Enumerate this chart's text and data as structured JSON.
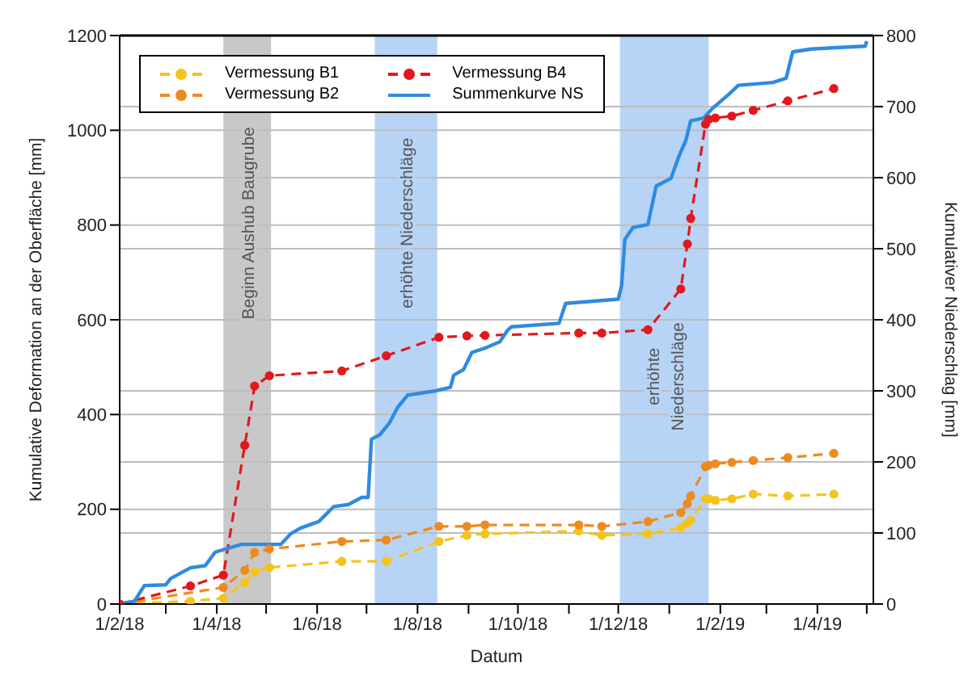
{
  "chart_data": {
    "type": "line",
    "xlabel": "Datum",
    "ylabel": "Kumulative Deformation an der Oberfläche [mm]",
    "y2label": "Kumulativer Niederschlag [mm]",
    "xlim": [
      "2018-02-01",
      "2019-05-05"
    ],
    "xticks": [
      {
        "value": "2018-02-01",
        "label": "1/2/18"
      },
      {
        "value": "2018-03-01",
        "label": null
      },
      {
        "value": "2018-04-01",
        "label": "1/4/18"
      },
      {
        "value": "2018-05-01",
        "label": null
      },
      {
        "value": "2018-06-01",
        "label": "1/6/18"
      },
      {
        "value": "2018-07-01",
        "label": null
      },
      {
        "value": "2018-08-01",
        "label": "1/8/18"
      },
      {
        "value": "2018-09-01",
        "label": null
      },
      {
        "value": "2018-10-01",
        "label": "1/10/18"
      },
      {
        "value": "2018-11-01",
        "label": null
      },
      {
        "value": "2018-12-01",
        "label": "1/12/18"
      },
      {
        "value": "2019-01-01",
        "label": null
      },
      {
        "value": "2019-02-01",
        "label": "1/2/19"
      },
      {
        "value": "2019-03-01",
        "label": null
      },
      {
        "value": "2019-04-01",
        "label": "1/4/19"
      },
      {
        "value": "2019-05-01",
        "label": null
      }
    ],
    "ylim": [
      0,
      1200
    ],
    "yticks": [
      0,
      200,
      400,
      600,
      800,
      1000,
      1200
    ],
    "y2lim": [
      0,
      800
    ],
    "y2ticks": [
      0,
      100,
      200,
      300,
      400,
      500,
      600,
      700,
      800
    ],
    "grid": "y",
    "legend": "top left",
    "bands": [
      {
        "axis": "x",
        "from": "2018-04-05",
        "to": "2018-05-04",
        "label": "Beginn Aushub Baugrube",
        "color": "#c8c8c8"
      },
      {
        "axis": "x",
        "from": "2018-07-06",
        "to": "2018-08-13",
        "label": "erhöhte Niederschläge",
        "color": "#b7d4f6"
      },
      {
        "axis": "x",
        "from": "2018-12-02",
        "to": "2019-01-25",
        "label": "erhöhte\nNiederschläge",
        "color": "#b7d4f6"
      }
    ],
    "series": [
      {
        "name": "Vermessung B1",
        "color": "#f5c31c",
        "marker": "circle",
        "line_style": "dashed",
        "x": [
          "2018-02-01",
          "2018-03-16",
          "2018-04-05",
          "2018-04-18",
          "2018-04-24",
          "2018-05-03",
          "2018-06-16",
          "2018-07-13",
          "2018-08-14",
          "2018-08-31",
          "2018-09-11",
          "2018-11-07",
          "2018-11-21",
          "2018-12-19",
          "2019-01-08",
          "2019-01-12",
          "2019-01-14",
          "2019-01-23",
          "2019-01-25",
          "2019-01-29",
          "2019-02-08",
          "2019-02-21",
          "2019-03-14",
          "2019-04-11"
        ],
        "values": [
          0,
          6,
          12,
          45,
          68,
          77,
          90,
          90,
          132,
          145,
          148,
          154,
          145,
          148,
          161,
          171,
          177,
          222,
          222,
          219,
          222,
          232,
          228,
          232
        ]
      },
      {
        "name": "Vermessung B2",
        "color": "#ef8a1e",
        "marker": "circle",
        "line_style": "dashed",
        "x": [
          "2018-02-01",
          "2018-04-05",
          "2018-04-18",
          "2018-04-24",
          "2018-05-03",
          "2018-06-16",
          "2018-07-13",
          "2018-08-14",
          "2018-08-31",
          "2018-09-11",
          "2018-11-07",
          "2018-11-21",
          "2018-12-19",
          "2019-01-08",
          "2019-01-12",
          "2019-01-14",
          "2019-01-23",
          "2019-01-25",
          "2019-01-29",
          "2019-02-08",
          "2019-02-21",
          "2019-03-14",
          "2019-04-11"
        ],
        "values": [
          0,
          35,
          71,
          109,
          116,
          132,
          135,
          164,
          164,
          167,
          167,
          164,
          174,
          193,
          212,
          228,
          290,
          293,
          296,
          299,
          303,
          309,
          318
        ]
      },
      {
        "name": "Vermessung B4",
        "color": "#e3181c",
        "marker": "circle",
        "line_style": "dashed",
        "x": [
          "2018-02-01",
          "2018-03-16",
          "2018-04-05",
          "2018-04-18",
          "2018-04-24",
          "2018-05-03",
          "2018-06-16",
          "2018-07-13",
          "2018-08-14",
          "2018-08-31",
          "2018-09-11",
          "2018-11-07",
          "2018-11-21",
          "2018-12-19",
          "2019-01-08",
          "2019-01-12",
          "2019-01-14",
          "2019-01-23",
          "2019-01-25",
          "2019-01-29",
          "2019-02-08",
          "2019-02-21",
          "2019-03-14",
          "2019-04-11"
        ],
        "values": [
          0,
          38,
          61,
          335,
          460,
          482,
          492,
          524,
          563,
          566,
          567,
          572,
          572,
          579,
          665,
          760,
          814,
          1013,
          1023,
          1026,
          1030,
          1042,
          1062,
          1088
        ]
      },
      {
        "name": "Summenkurve NS",
        "color": "#2f8be0",
        "marker": "none",
        "line_style": "solid",
        "axis": "y2",
        "x": [
          "2018-02-01",
          "2018-02-10",
          "2018-02-16",
          "2018-03-01",
          "2018-03-04",
          "2018-03-16",
          "2018-03-25",
          "2018-03-31",
          "2018-04-16",
          "2018-05-10",
          "2018-05-16",
          "2018-05-22",
          "2018-06-02",
          "2018-06-11",
          "2018-06-20",
          "2018-06-28",
          "2018-07-02",
          "2018-07-04",
          "2018-07-09",
          "2018-07-15",
          "2018-07-20",
          "2018-07-26",
          "2018-08-12",
          "2018-08-21",
          "2018-08-23",
          "2018-08-29",
          "2018-09-03",
          "2018-09-12",
          "2018-09-20",
          "2018-09-25",
          "2018-09-27",
          "2018-10-26",
          "2018-10-30",
          "2018-12-01",
          "2018-12-03",
          "2018-12-05",
          "2018-12-10",
          "2018-12-19",
          "2018-12-24",
          "2019-01-02",
          "2019-01-07",
          "2019-01-11",
          "2019-01-14",
          "2019-01-22",
          "2019-01-27",
          "2019-02-06",
          "2019-02-12",
          "2019-03-05",
          "2019-03-13",
          "2019-03-17",
          "2019-03-28",
          "2019-04-12",
          "2019-04-30",
          "2019-05-01"
        ],
        "values": [
          0,
          4,
          26,
          27,
          36,
          51,
          54,
          73,
          84,
          84,
          99,
          107,
          116,
          137,
          140,
          150,
          150,
          232,
          238,
          255,
          277,
          294,
          300,
          305,
          322,
          330,
          354,
          361,
          369,
          386,
          390,
          395,
          423,
          429,
          448,
          513,
          530,
          534,
          588,
          599,
          631,
          652,
          680,
          684,
          697,
          717,
          730,
          734,
          740,
          777,
          781,
          783,
          785,
          792
        ]
      }
    ]
  }
}
